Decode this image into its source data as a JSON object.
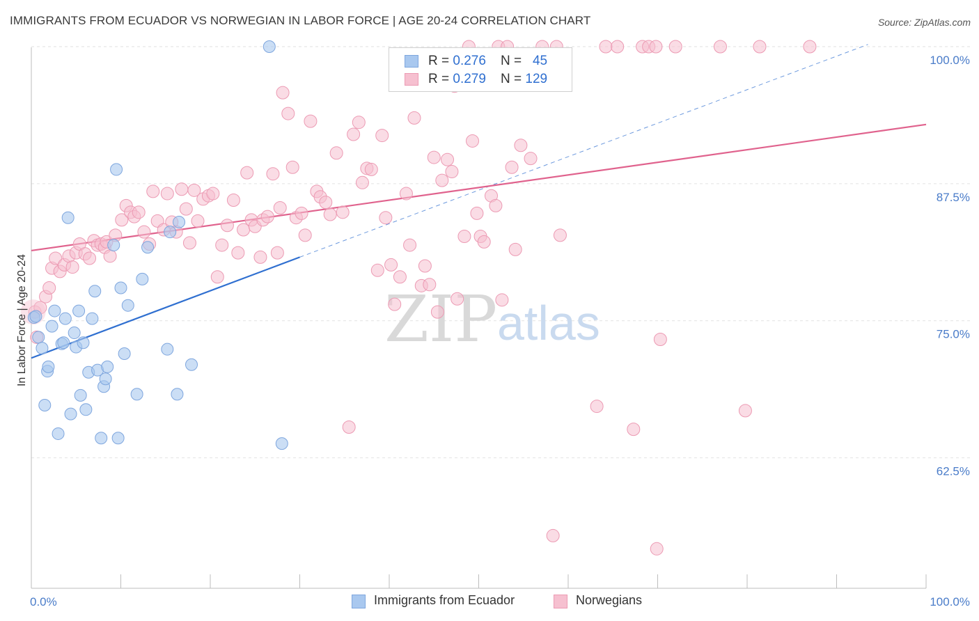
{
  "header": {
    "title": "IMMIGRANTS FROM ECUADOR VS NORWEGIAN IN LABOR FORCE | AGE 20-24 CORRELATION CHART",
    "source": "Source: ZipAtlas.com"
  },
  "legend_top": {
    "rows": [
      {
        "r_label": "R = ",
        "r_value": "0.276",
        "n_label": "N = ",
        "n_value": "45"
      },
      {
        "r_label": "R = ",
        "r_value": "0.279",
        "n_label": "N = ",
        "n_value": "129"
      }
    ]
  },
  "legend_bottom": {
    "items": [
      "Immigrants from Ecuador",
      "Norwegians"
    ]
  },
  "watermark": {
    "zip": "ZIP",
    "atlas": "atlas"
  },
  "colors": {
    "blue_fill": "#a9c8ef",
    "blue_stroke": "#7ea6de",
    "blue_line": "#2f6fd0",
    "pink_fill": "#f6c0d0",
    "pink_stroke": "#ec9ab3",
    "pink_line": "#e0628d",
    "tick_text": "#4a7cc9",
    "grid": "#e2e2e2"
  },
  "chart_data": {
    "type": "scatter",
    "title": "IMMIGRANTS FROM ECUADOR VS NORWEGIAN IN LABOR FORCE | AGE 20-24 CORRELATION CHART",
    "xlabel": "",
    "ylabel": "In Labor Force | Age 20-24",
    "xlim": [
      0,
      100
    ],
    "ylim": [
      50.6,
      100.7
    ],
    "x_tick_labels": [
      "0.0%",
      "100.0%"
    ],
    "y_ticks": [
      62.5,
      75.0,
      87.5,
      100.0
    ],
    "y_tick_labels": [
      "62.5%",
      "75.0%",
      "87.5%",
      "100.0%"
    ],
    "grid": true,
    "legend_position": "top-center",
    "series": [
      {
        "name": "Immigrants from Ecuador",
        "color": "blue",
        "r": 0.276,
        "n": 45,
        "trend_line": {
          "x": [
            0,
            30
          ],
          "y": [
            71.6,
            80.8
          ]
        },
        "trend_extension": {
          "x": [
            30,
            93.5
          ],
          "y": [
            80.8,
            100.2
          ]
        },
        "points": [
          [
            0.3,
            75.3
          ],
          [
            0.8,
            73.5
          ],
          [
            1.2,
            72.5
          ],
          [
            1.5,
            67.3
          ],
          [
            1.8,
            70.4
          ],
          [
            1.9,
            70.8
          ],
          [
            2.3,
            74.5
          ],
          [
            2.6,
            75.9
          ],
          [
            3.0,
            64.7
          ],
          [
            3.4,
            72.9
          ],
          [
            3.6,
            73.0
          ],
          [
            3.8,
            75.2
          ],
          [
            4.1,
            84.4
          ],
          [
            4.4,
            66.5
          ],
          [
            4.8,
            73.9
          ],
          [
            5.0,
            72.6
          ],
          [
            5.3,
            75.9
          ],
          [
            5.5,
            68.2
          ],
          [
            5.8,
            73.0
          ],
          [
            6.1,
            66.9
          ],
          [
            6.4,
            70.3
          ],
          [
            6.8,
            75.2
          ],
          [
            7.1,
            77.7
          ],
          [
            7.4,
            70.5
          ],
          [
            7.8,
            64.3
          ],
          [
            8.1,
            69.0
          ],
          [
            8.3,
            69.7
          ],
          [
            8.5,
            70.8
          ],
          [
            9.2,
            81.9
          ],
          [
            9.5,
            88.8
          ],
          [
            9.7,
            64.3
          ],
          [
            10.0,
            78.0
          ],
          [
            10.4,
            72.0
          ],
          [
            10.8,
            76.4
          ],
          [
            11.8,
            68.3
          ],
          [
            12.4,
            78.8
          ],
          [
            13.0,
            81.7
          ],
          [
            15.2,
            72.4
          ],
          [
            15.5,
            83.1
          ],
          [
            16.3,
            68.3
          ],
          [
            16.5,
            84.0
          ],
          [
            17.9,
            71.0
          ],
          [
            26.6,
            100.0
          ],
          [
            28.0,
            63.8
          ],
          [
            0.5,
            75.4
          ]
        ]
      },
      {
        "name": "Norwegians",
        "color": "pink",
        "r": 0.279,
        "n": 129,
        "trend_line": {
          "x": [
            0,
            100
          ],
          "y": [
            81.4,
            92.9
          ]
        },
        "points": [
          [
            0.4,
            75.8
          ],
          [
            0.6,
            73.5
          ],
          [
            1.0,
            76.2
          ],
          [
            1.6,
            77.2
          ],
          [
            2.0,
            78.0
          ],
          [
            2.3,
            79.8
          ],
          [
            2.7,
            80.7
          ],
          [
            3.2,
            79.5
          ],
          [
            3.7,
            80.1
          ],
          [
            4.2,
            80.9
          ],
          [
            4.6,
            79.9
          ],
          [
            5.0,
            81.2
          ],
          [
            5.4,
            82.0
          ],
          [
            6.0,
            81.1
          ],
          [
            6.5,
            80.7
          ],
          [
            7.0,
            82.3
          ],
          [
            7.4,
            81.9
          ],
          [
            7.8,
            82.0
          ],
          [
            8.2,
            81.7
          ],
          [
            8.4,
            82.2
          ],
          [
            8.8,
            80.9
          ],
          [
            9.4,
            82.8
          ],
          [
            10.1,
            84.2
          ],
          [
            10.6,
            85.5
          ],
          [
            11.1,
            84.9
          ],
          [
            11.5,
            84.5
          ],
          [
            12.0,
            84.9
          ],
          [
            12.6,
            83.1
          ],
          [
            13.2,
            82.0
          ],
          [
            13.6,
            86.8
          ],
          [
            14.1,
            84.1
          ],
          [
            14.8,
            83.3
          ],
          [
            15.2,
            86.6
          ],
          [
            15.7,
            84.0
          ],
          [
            16.2,
            83.1
          ],
          [
            16.8,
            87.0
          ],
          [
            17.3,
            85.2
          ],
          [
            17.7,
            82.1
          ],
          [
            18.2,
            86.9
          ],
          [
            18.6,
            84.1
          ],
          [
            19.2,
            86.1
          ],
          [
            19.8,
            86.4
          ],
          [
            20.3,
            86.6
          ],
          [
            20.8,
            79.0
          ],
          [
            21.3,
            81.9
          ],
          [
            21.9,
            83.7
          ],
          [
            22.6,
            86.0
          ],
          [
            23.1,
            81.2
          ],
          [
            23.7,
            83.3
          ],
          [
            24.1,
            88.5
          ],
          [
            24.6,
            84.2
          ],
          [
            25.0,
            83.6
          ],
          [
            25.6,
            80.8
          ],
          [
            25.9,
            84.2
          ],
          [
            26.4,
            84.5
          ],
          [
            27.0,
            88.4
          ],
          [
            27.5,
            81.2
          ],
          [
            27.8,
            85.3
          ],
          [
            28.1,
            95.8
          ],
          [
            28.7,
            93.9
          ],
          [
            29.2,
            89.0
          ],
          [
            29.6,
            84.4
          ],
          [
            30.2,
            84.8
          ],
          [
            30.6,
            82.8
          ],
          [
            31.2,
            93.2
          ],
          [
            31.9,
            86.8
          ],
          [
            32.3,
            86.3
          ],
          [
            32.9,
            85.8
          ],
          [
            33.4,
            84.7
          ],
          [
            34.1,
            90.3
          ],
          [
            34.8,
            84.9
          ],
          [
            35.5,
            65.3
          ],
          [
            36.0,
            92.0
          ],
          [
            36.6,
            93.1
          ],
          [
            37.0,
            87.6
          ],
          [
            37.5,
            88.9
          ],
          [
            38.0,
            88.8
          ],
          [
            38.7,
            79.6
          ],
          [
            39.2,
            91.9
          ],
          [
            39.6,
            84.4
          ],
          [
            40.2,
            80.1
          ],
          [
            40.6,
            76.5
          ],
          [
            41.2,
            79.0
          ],
          [
            41.9,
            86.6
          ],
          [
            42.3,
            81.9
          ],
          [
            42.8,
            93.5
          ],
          [
            43.6,
            78.2
          ],
          [
            44.0,
            80.0
          ],
          [
            44.5,
            78.3
          ],
          [
            45.0,
            89.9
          ],
          [
            45.4,
            75.8
          ],
          [
            45.9,
            87.8
          ],
          [
            46.5,
            89.7
          ],
          [
            47.0,
            88.6
          ],
          [
            47.6,
            77.0
          ],
          [
            48.4,
            82.7
          ],
          [
            48.9,
            100.0
          ],
          [
            49.3,
            91.4
          ],
          [
            49.8,
            84.8
          ],
          [
            50.2,
            82.7
          ],
          [
            50.6,
            82.2
          ],
          [
            51.4,
            86.4
          ],
          [
            51.9,
            85.5
          ],
          [
            52.2,
            100.0
          ],
          [
            52.6,
            76.9
          ],
          [
            53.2,
            100.0
          ],
          [
            53.7,
            89.0
          ],
          [
            54.1,
            81.5
          ],
          [
            54.7,
            91.0
          ],
          [
            55.8,
            89.8
          ],
          [
            57.1,
            100.0
          ],
          [
            58.7,
            100.0
          ],
          [
            59.1,
            82.8
          ],
          [
            58.3,
            55.4
          ],
          [
            63.2,
            67.2
          ],
          [
            64.2,
            100.0
          ],
          [
            65.5,
            100.0
          ],
          [
            67.3,
            65.1
          ],
          [
            68.3,
            100.0
          ],
          [
            69.0,
            100.0
          ],
          [
            69.9,
            54.2
          ],
          [
            70.3,
            73.3
          ],
          [
            72.0,
            100.0
          ],
          [
            77.0,
            100.0
          ],
          [
            79.8,
            66.8
          ],
          [
            81.4,
            100.0
          ],
          [
            87.0,
            100.0
          ],
          [
            69.8,
            100.0
          ],
          [
            47.3,
            96.4
          ]
        ]
      }
    ]
  }
}
